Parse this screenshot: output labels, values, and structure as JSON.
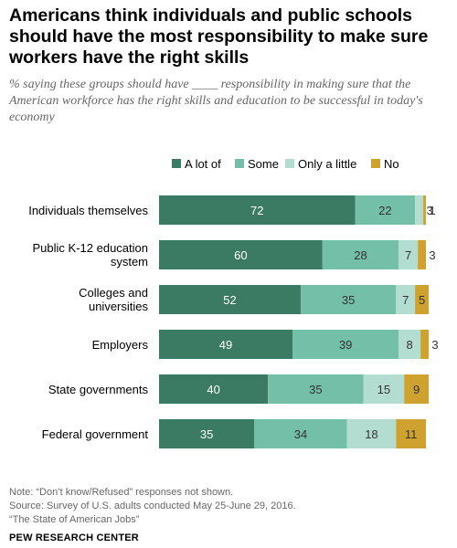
{
  "title": "Americans think individuals and public schools should have the most responsibility to make sure workers have the right skills",
  "subtitle": "% saying these groups should have ____ responsibility in making sure that the American workforce has the right skills and education to be successful in today's economy",
  "chart_data": {
    "type": "bar",
    "orientation": "horizontal",
    "stacked": true,
    "legend_position": "top",
    "categories": [
      "Individuals themselves",
      "Public K-12 education system",
      "Colleges and universities",
      "Employers",
      "State governments",
      "Federal government"
    ],
    "series": [
      {
        "name": "A lot of",
        "color": "#3b7a63",
        "values": [
          72,
          60,
          52,
          49,
          40,
          35
        ]
      },
      {
        "name": "Some",
        "color": "#74bfa7",
        "values": [
          22,
          28,
          35,
          39,
          35,
          34
        ]
      },
      {
        "name": "Only a little",
        "color": "#b3ddd1",
        "values": [
          3,
          7,
          7,
          8,
          15,
          18
        ]
      },
      {
        "name": "No",
        "color": "#cfa230",
        "values": [
          1,
          3,
          5,
          3,
          9,
          11
        ]
      }
    ]
  },
  "footer": {
    "note": "Note: “Don’t know/Refused” responses not shown.",
    "source": "Source: Survey of U.S. adults conducted May 25-June 29, 2016.",
    "report": "“The State of American Jobs”",
    "brand": "PEW RESEARCH CENTER"
  }
}
